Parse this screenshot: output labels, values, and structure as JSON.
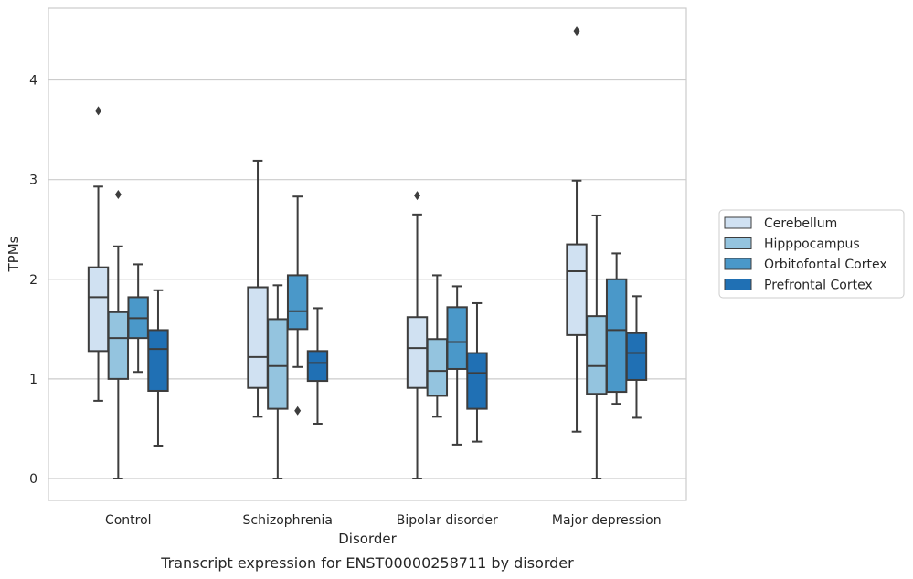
{
  "chart_data": {
    "type": "box",
    "caption": "Transcript expression for ENST00000258711 by disorder",
    "xlabel": "Disorder",
    "ylabel": "TPMs",
    "ylim": [
      -0.22,
      4.72
    ],
    "yticks": [
      0,
      1,
      2,
      3,
      4
    ],
    "grid": "horizontal",
    "legend_position": "right",
    "categories": [
      "Control",
      "Schizophrenia",
      "Bipolar disorder",
      "Major depression"
    ],
    "series": [
      {
        "name": "Cerebellum",
        "color": "#d0e1f2",
        "boxes": [
          {
            "whisker_low": 0.78,
            "q1": 1.28,
            "median": 1.82,
            "q3": 2.12,
            "whisker_high": 2.93,
            "outliers": [
              3.69
            ]
          },
          {
            "whisker_low": 0.62,
            "q1": 0.91,
            "median": 1.22,
            "q3": 1.92,
            "whisker_high": 3.19,
            "outliers": []
          },
          {
            "whisker_low": 0.0,
            "q1": 0.91,
            "median": 1.31,
            "q3": 1.62,
            "whisker_high": 2.65,
            "outliers": [
              2.84
            ]
          },
          {
            "whisker_low": 0.47,
            "q1": 1.44,
            "median": 2.08,
            "q3": 2.35,
            "whisker_high": 2.99,
            "outliers": [
              4.49
            ]
          }
        ]
      },
      {
        "name": "Hipppocampus",
        "color": "#94c4df",
        "boxes": [
          {
            "whisker_low": 0.0,
            "q1": 1.0,
            "median": 1.41,
            "q3": 1.67,
            "whisker_high": 2.33,
            "outliers": [
              2.85
            ]
          },
          {
            "whisker_low": 0.0,
            "q1": 0.7,
            "median": 1.13,
            "q3": 1.6,
            "whisker_high": 1.94,
            "outliers": []
          },
          {
            "whisker_low": 0.62,
            "q1": 0.83,
            "median": 1.08,
            "q3": 1.4,
            "whisker_high": 2.04,
            "outliers": []
          },
          {
            "whisker_low": 0.0,
            "q1": 0.85,
            "median": 1.13,
            "q3": 1.63,
            "whisker_high": 2.64,
            "outliers": []
          }
        ]
      },
      {
        "name": "Orbitofontal Cortex",
        "color": "#4a98c9",
        "boxes": [
          {
            "whisker_low": 1.07,
            "q1": 1.41,
            "median": 1.61,
            "q3": 1.82,
            "whisker_high": 2.15,
            "outliers": []
          },
          {
            "whisker_low": 1.12,
            "q1": 1.5,
            "median": 1.68,
            "q3": 2.04,
            "whisker_high": 2.83,
            "outliers": [
              0.68
            ]
          },
          {
            "whisker_low": 0.34,
            "q1": 1.1,
            "median": 1.37,
            "q3": 1.72,
            "whisker_high": 1.93,
            "outliers": []
          },
          {
            "whisker_low": 0.75,
            "q1": 0.87,
            "median": 1.49,
            "q3": 2.0,
            "whisker_high": 2.26,
            "outliers": []
          }
        ]
      },
      {
        "name": "Prefrontal Cortex",
        "color": "#2070b4",
        "boxes": [
          {
            "whisker_low": 0.33,
            "q1": 0.88,
            "median": 1.3,
            "q3": 1.49,
            "whisker_high": 1.89,
            "outliers": []
          },
          {
            "whisker_low": 0.55,
            "q1": 0.98,
            "median": 1.16,
            "q3": 1.28,
            "whisker_high": 1.71,
            "outliers": []
          },
          {
            "whisker_low": 0.37,
            "q1": 0.7,
            "median": 1.06,
            "q3": 1.26,
            "whisker_high": 1.76,
            "outliers": []
          },
          {
            "whisker_low": 0.61,
            "q1": 0.99,
            "median": 1.26,
            "q3": 1.46,
            "whisker_high": 1.83,
            "outliers": []
          }
        ]
      }
    ]
  }
}
